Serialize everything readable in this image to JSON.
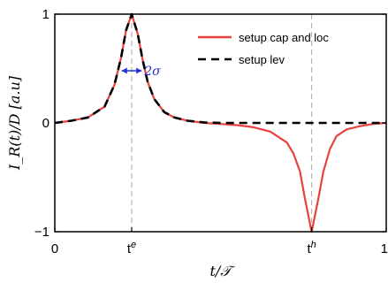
{
  "chart_data": {
    "type": "line",
    "xlabel": "t/𝒯",
    "ylabel": "I_R(t)/D [a.u]",
    "xlim": [
      0,
      1
    ],
    "ylim": [
      -1,
      1
    ],
    "x_ticks": [
      {
        "value": 0,
        "label": "0"
      },
      {
        "value": 0.232,
        "label": "t",
        "sup": "e"
      },
      {
        "value": 0.775,
        "label": "t",
        "sup": "h"
      },
      {
        "value": 1,
        "label": "1"
      }
    ],
    "y_ticks": [
      {
        "value": 1,
        "label": "1"
      },
      {
        "value": 0,
        "label": "0"
      },
      {
        "value": -1,
        "label": "−1"
      }
    ],
    "marker_lines": [
      0.232,
      0.775
    ],
    "x": [
      0,
      0.05,
      0.1,
      0.15,
      0.18,
      0.2,
      0.215,
      0.232,
      0.25,
      0.265,
      0.28,
      0.3,
      0.33,
      0.36,
      0.4,
      0.45,
      0.5,
      0.55,
      0.6,
      0.65,
      0.7,
      0.72,
      0.74,
      0.755,
      0.775,
      0.795,
      0.81,
      0.83,
      0.85,
      0.88,
      0.92,
      0.96,
      1.0
    ],
    "series": [
      {
        "name": "setup cap and loc",
        "color": "#e8423f",
        "style": "solid",
        "values": [
          0.0,
          0.02,
          0.05,
          0.15,
          0.35,
          0.6,
          0.85,
          1.0,
          0.82,
          0.58,
          0.38,
          0.22,
          0.1,
          0.05,
          0.02,
          0.0,
          -0.01,
          -0.02,
          -0.04,
          -0.08,
          -0.18,
          -0.28,
          -0.45,
          -0.7,
          -1.0,
          -0.7,
          -0.45,
          -0.24,
          -0.12,
          -0.06,
          -0.03,
          -0.01,
          0.0
        ]
      },
      {
        "name": "setup lev",
        "color": "#000000",
        "style": "dashed",
        "values": [
          0.0,
          0.02,
          0.05,
          0.15,
          0.35,
          0.6,
          0.85,
          1.0,
          0.82,
          0.58,
          0.38,
          0.22,
          0.1,
          0.05,
          0.02,
          0.005,
          0.0,
          0.0,
          0.0,
          0.0,
          0.0,
          0.0,
          0.0,
          0.0,
          0.0,
          0.0,
          0.0,
          0.0,
          0.0,
          0.0,
          0.0,
          0.0,
          0.0
        ]
      }
    ],
    "annotation": {
      "text": "2σ",
      "x_center": 0.232,
      "half_width": 0.03,
      "y": 0.48,
      "color": "#1f2fd6"
    },
    "legend": {
      "placement": "top-right"
    },
    "grid": false
  }
}
